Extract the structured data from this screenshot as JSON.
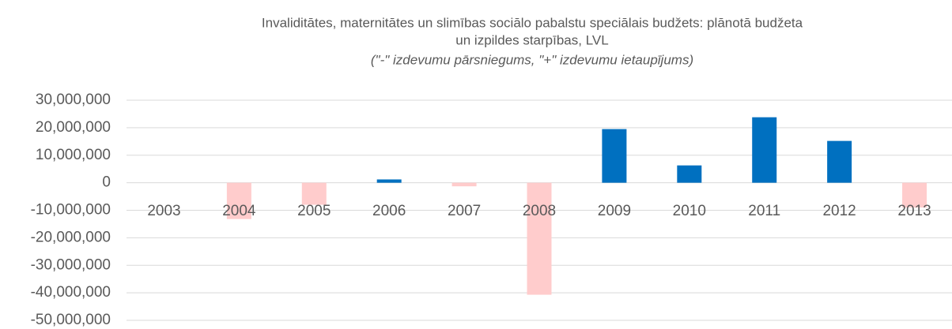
{
  "chart_data": {
    "type": "bar",
    "title": "Invaliditātes, maternitātes un slimības sociālo pabalstu speciālais budžets: plānotā budžeta",
    "subtitle": "un izpildes starpības, LVL",
    "annotation": "(\"-\" izdevumu pārsniegums, \"+\" izdevumu ietaupījums)",
    "categories": [
      "2003",
      "2004",
      "2005",
      "2006",
      "2007",
      "2008",
      "2009",
      "2010",
      "2011",
      "2012",
      "2013"
    ],
    "values": [
      0,
      -13200000,
      -8000000,
      1200000,
      -1300000,
      -40700000,
      19500000,
      6300000,
      23800000,
      15200000,
      -9000000
    ],
    "color_positive": "#0070c0",
    "color_negative": "#ffcccc",
    "ylim": [
      -50000000,
      30000000
    ],
    "yticks": [
      {
        "value": -50000000,
        "label": "-50,000,000"
      },
      {
        "value": -40000000,
        "label": "-40,000,000"
      },
      {
        "value": -30000000,
        "label": "-30,000,000"
      },
      {
        "value": -20000000,
        "label": "-20,000,000"
      },
      {
        "value": -10000000,
        "label": "-10,000,000"
      },
      0,
      {
        "value": 10000000,
        "label": "10,000,000"
      },
      {
        "value": 20000000,
        "label": "20,000,000"
      },
      {
        "value": 30000000,
        "label": "30,000,000"
      }
    ],
    "grid": true
  }
}
